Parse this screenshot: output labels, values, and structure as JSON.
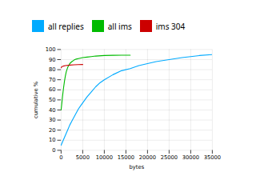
{
  "chart_data": {
    "type": "line",
    "xlabel": "bytes",
    "ylabel": "cumulative %",
    "xlim": [
      0,
      35000
    ],
    "ylim": [
      0,
      100
    ],
    "xticks": [
      0,
      5000,
      10000,
      15000,
      20000,
      25000,
      30000,
      35000
    ],
    "yticks": [
      0,
      10,
      20,
      30,
      40,
      50,
      60,
      70,
      80,
      90,
      100
    ],
    "grid": true,
    "legend": "top",
    "series": [
      {
        "name": "all replies",
        "color": "#00aaff",
        "x": [
          0,
          100,
          300,
          500,
          800,
          1000,
          1500,
          2000,
          2500,
          3000,
          3500,
          4000,
          4500,
          5000,
          6000,
          7000,
          8000,
          9000,
          10000,
          12000,
          14000,
          16000,
          18000,
          20000,
          22000,
          25000,
          28000,
          30000,
          32000,
          35000
        ],
        "values": [
          5,
          6,
          8,
          10,
          13,
          15,
          20,
          25,
          29,
          33,
          37,
          41,
          44,
          47,
          53,
          58,
          63,
          67,
          70,
          75,
          79,
          81,
          84,
          86,
          88,
          90,
          92,
          93,
          94,
          95
        ]
      },
      {
        "name": "all ims",
        "color": "#00bb00",
        "x": [
          0,
          100,
          200,
          400,
          600,
          800,
          1000,
          1200,
          1500,
          2000,
          2500,
          3000,
          3500,
          4000,
          5000,
          6000,
          7000,
          8000,
          10000,
          12000,
          14000,
          16000
        ],
        "values": [
          40,
          44,
          48,
          56,
          63,
          69,
          74,
          78,
          82,
          86,
          88,
          89.5,
          90.5,
          91,
          92,
          92.5,
          93,
          93.5,
          94,
          94.2,
          94.3,
          94.35
        ]
      },
      {
        "name": "ims 304",
        "color": "#cc0000",
        "x": [
          0,
          100,
          200,
          500,
          1000,
          2000,
          3000,
          4000,
          5000
        ],
        "values": [
          82,
          82.5,
          83,
          83.5,
          84,
          84.5,
          84.8,
          85.0,
          85.1
        ]
      }
    ]
  }
}
